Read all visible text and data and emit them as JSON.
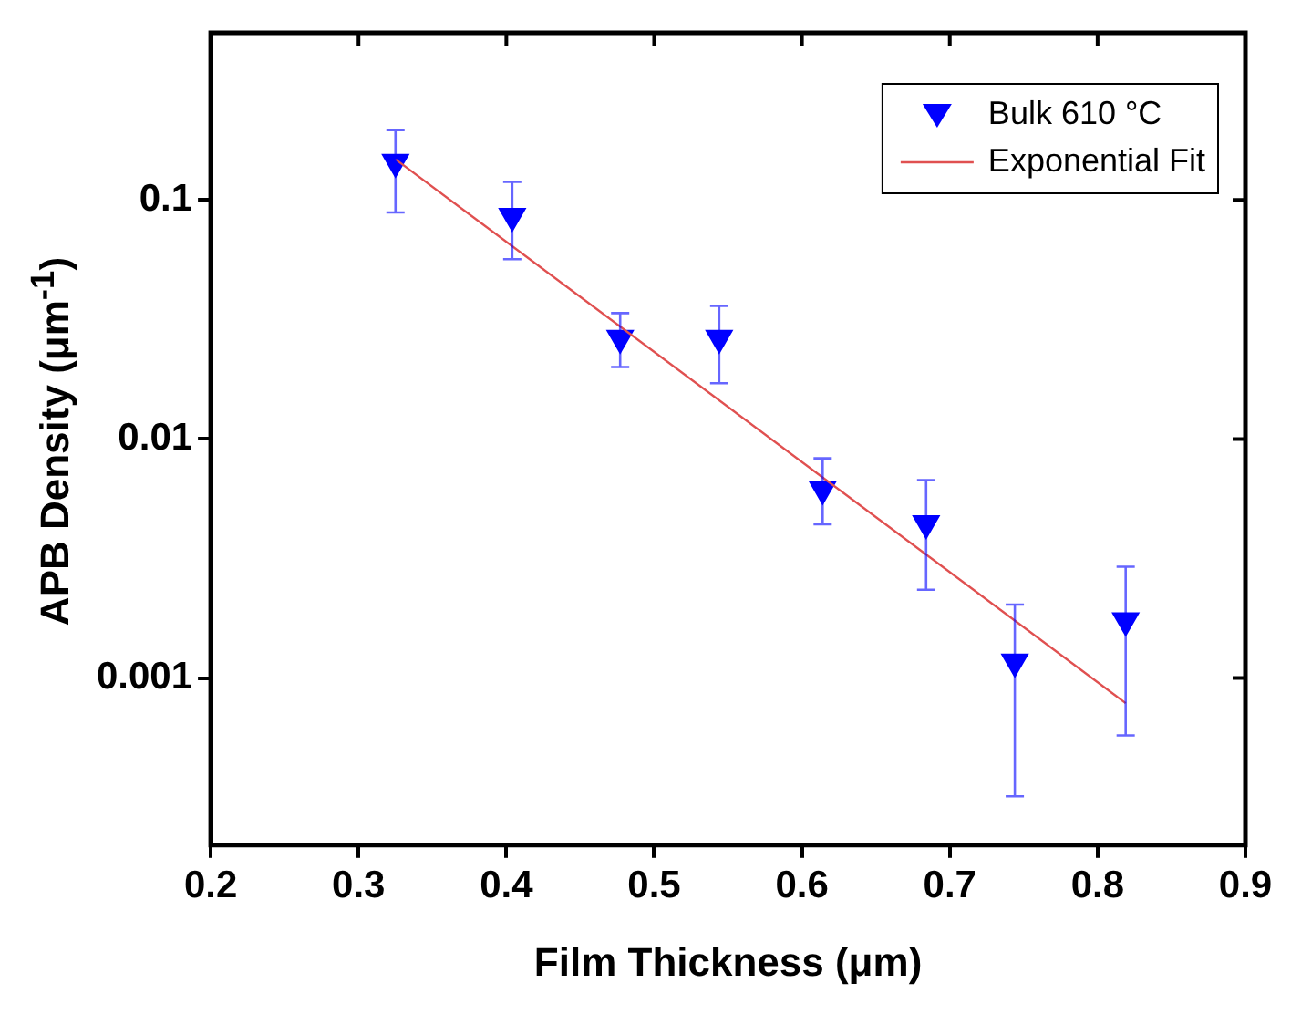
{
  "chart_data": {
    "type": "scatter",
    "xlabel": "Film Thickness (μm)",
    "ylabel": "APB Density (μm$^{-1}$)",
    "log": "y",
    "xlim": [
      0.2,
      0.9
    ],
    "xticks": [
      0.2,
      0.3,
      0.4,
      0.5,
      0.6,
      0.7,
      0.8,
      0.9
    ],
    "ylim": [
      0.0002,
      0.5
    ],
    "yticks": [
      0.001,
      0.01,
      0.1
    ],
    "grid": false,
    "legend": "top right",
    "marker": "triangle",
    "series": [
      {
        "name": "Bulk 610 °C",
        "color": "#0000ff",
        "x": [
          0.325,
          0.404,
          0.477,
          0.544,
          0.614,
          0.684,
          0.744,
          0.819
        ],
        "values": [
          0.144,
          0.0856,
          0.0264,
          0.0264,
          0.00616,
          0.00443,
          0.00117,
          0.00174
        ],
        "errors": [
          [
            0.0886,
            0.196
          ],
          [
            0.0565,
            0.119
          ],
          [
            0.02,
            0.0336
          ],
          [
            0.0171,
            0.036
          ],
          [
            0.0044,
            0.0083
          ],
          [
            0.00234,
            0.00672
          ],
          [
            0.00032,
            0.00203
          ],
          [
            0.000575,
            0.00292
          ]
        ]
      },
      {
        "name": "Exponential Fit",
        "type": "line",
        "color": "#e05050",
        "marker": "none",
        "x": [
          0.325,
          0.819
        ],
        "values": [
          0.148,
          0.000785
        ]
      }
    ]
  }
}
